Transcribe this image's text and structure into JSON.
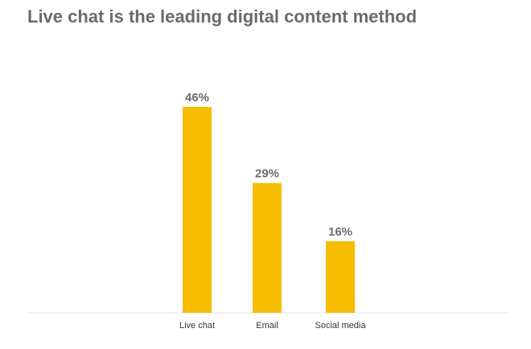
{
  "chart_data": {
    "type": "bar",
    "title": "Live chat is the leading digital content method",
    "categories": [
      "Live chat",
      "Email",
      "Social media"
    ],
    "values": [
      46,
      29,
      16
    ],
    "value_labels": [
      "46%",
      "29%",
      "16%"
    ],
    "xlabel": "",
    "ylabel": "",
    "ylim": [
      0,
      46
    ],
    "grid": false,
    "legend": "none",
    "bar_color": "#F7BD00",
    "axis_color": "#e6e6e6",
    "text_color": "#6b6b6b"
  }
}
